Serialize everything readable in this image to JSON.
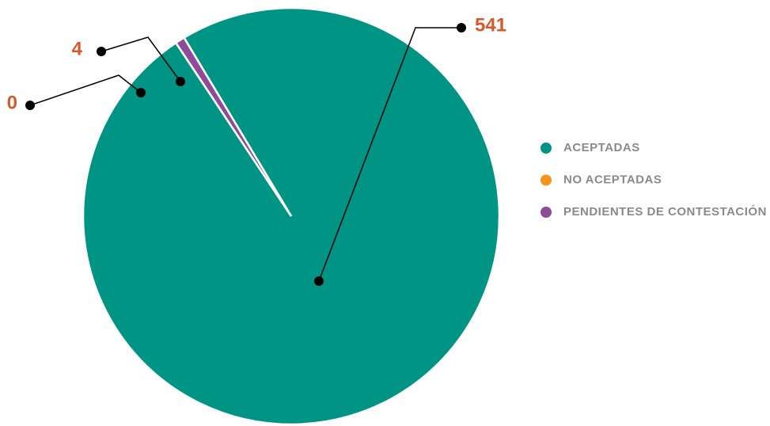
{
  "chart_data": {
    "type": "pie",
    "categories": [
      "ACEPTADAS",
      "NO ACEPTADAS",
      "PENDIENTES DE CONTESTACIÓN"
    ],
    "values": [
      541,
      0,
      4
    ],
    "colors": [
      "#009485",
      "#f7941d",
      "#8e4a9b"
    ],
    "legend": "right"
  }
}
